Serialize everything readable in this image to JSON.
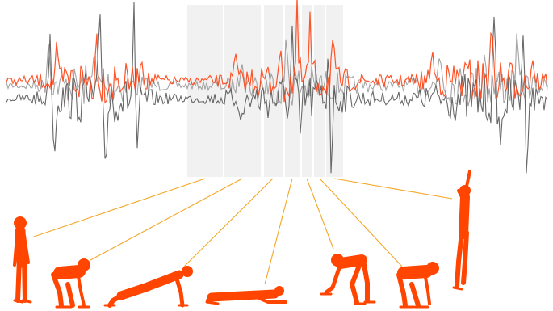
{
  "colors": {
    "background": "#ffffff",
    "signal_primary": "#ff4a1c",
    "signal_secondary_light": "#9a9a9a",
    "signal_secondary_dark": "#4d4d4d",
    "segment_highlight": "#d9d9d9",
    "connector": "#f5a623",
    "figure": "#ff4500"
  },
  "segments": [
    {
      "id": "standing"
    },
    {
      "id": "squat-down"
    },
    {
      "id": "plank"
    },
    {
      "id": "push-up-down"
    },
    {
      "id": "push-up-up"
    },
    {
      "id": "squat-up"
    },
    {
      "id": "jump"
    }
  ],
  "figures": [
    {
      "pose": "standing"
    },
    {
      "pose": "squat"
    },
    {
      "pose": "plank"
    },
    {
      "pose": "prone"
    },
    {
      "pose": "bent-forward"
    },
    {
      "pose": "squat"
    },
    {
      "pose": "jump-reach"
    }
  ]
}
